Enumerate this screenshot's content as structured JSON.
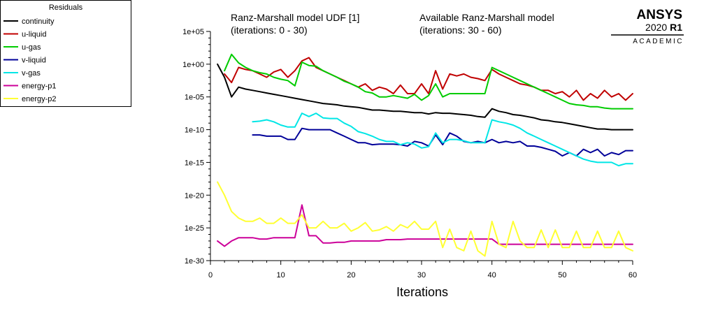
{
  "chart_data": {
    "type": "line",
    "title": "",
    "xlabel": "Iterations",
    "ylabel": "",
    "xlim": [
      0,
      60
    ],
    "ylim_exp": [
      -30,
      5
    ],
    "y_scale": "log",
    "x_ticks": [
      "0",
      "10",
      "20",
      "30",
      "40",
      "50",
      "60"
    ],
    "y_ticks": [
      "1e+05",
      "1e+00",
      "1e-05",
      "1e-10",
      "1e-15",
      "1e-20",
      "1e-25",
      "1e-30"
    ],
    "grid": false,
    "legend": {
      "title": "Residuals",
      "placement": "top-left"
    },
    "annotations": [
      {
        "line1": "Ranz-Marshall model UDF [1]",
        "line2": "(iterations: 0 - 30)"
      },
      {
        "line1": "Available Ranz-Marshall model",
        "line2": "(iterations: 30 - 60)"
      }
    ],
    "series": [
      {
        "name": "continuity",
        "color": "#000000",
        "x": [
          1,
          2,
          3,
          4,
          5,
          6,
          7,
          8,
          9,
          10,
          11,
          12,
          13,
          14,
          15,
          16,
          17,
          18,
          19,
          20,
          21,
          22,
          23,
          24,
          25,
          26,
          27,
          28,
          29,
          30,
          31,
          32,
          33,
          34,
          35,
          36,
          37,
          38,
          39,
          40,
          41,
          42,
          43,
          44,
          45,
          46,
          47,
          48,
          49,
          50,
          51,
          52,
          53,
          54,
          55,
          56,
          57,
          58,
          59,
          60
        ],
        "y_exp": [
          0,
          -2,
          -5,
          -3.5,
          -3.8,
          -4,
          -4.2,
          -4.4,
          -4.6,
          -4.8,
          -5,
          -5.2,
          -5.4,
          -5.6,
          -5.8,
          -6,
          -6.1,
          -6.2,
          -6.4,
          -6.5,
          -6.6,
          -6.8,
          -7,
          -7,
          -7.1,
          -7.2,
          -7.2,
          -7.3,
          -7.4,
          -7.4,
          -7.6,
          -7.4,
          -7.5,
          -7.5,
          -7.6,
          -7.7,
          -7.8,
          -8,
          -8.1,
          -6.8,
          -7.2,
          -7.4,
          -7.7,
          -7.8,
          -8,
          -8.2,
          -8.5,
          -8.6,
          -8.8,
          -8.9,
          -9.1,
          -9.3,
          -9.5,
          -9.7,
          -9.9,
          -9.9,
          -10,
          -10,
          -10,
          -10
        ]
      },
      {
        "name": "u-liquid",
        "color": "#c00000",
        "x": [
          1,
          2,
          3,
          4,
          5,
          6,
          7,
          8,
          9,
          10,
          11,
          12,
          13,
          14,
          15,
          16,
          17,
          18,
          19,
          20,
          21,
          22,
          23,
          24,
          25,
          26,
          27,
          28,
          29,
          30,
          31,
          32,
          33,
          34,
          35,
          36,
          37,
          38,
          39,
          40,
          41,
          42,
          43,
          44,
          45,
          46,
          47,
          48,
          49,
          50,
          51,
          52,
          53,
          54,
          55,
          56,
          57,
          58,
          59,
          60
        ],
        "y_exp": [
          null,
          -1.5,
          -2.8,
          -0.5,
          -0.8,
          -1,
          -1.5,
          -2,
          -1.2,
          -0.8,
          -2,
          -1,
          0.5,
          1,
          -0.5,
          -1,
          -1.5,
          -2,
          -2.5,
          -3,
          -3.5,
          -3,
          -4,
          -3.5,
          -3.8,
          -4.5,
          -3.2,
          -4.5,
          -4.5,
          -3,
          -4.5,
          -1,
          -3.8,
          -1.5,
          -1.8,
          -1.5,
          -2,
          -2.2,
          -2.5,
          -0.8,
          -1.5,
          -2,
          -2.5,
          -3,
          -3.2,
          -3.5,
          -4,
          -4,
          -4.5,
          -4.2,
          -5,
          -4,
          -5.5,
          -4.5,
          -5.2,
          -4,
          -5,
          -4.5,
          -5.5,
          -4.5
        ]
      },
      {
        "name": "u-gas",
        "color": "#00cc00",
        "x": [
          2,
          3,
          4,
          5,
          6,
          7,
          8,
          9,
          10,
          11,
          12,
          13,
          14,
          15,
          16,
          17,
          18,
          19,
          20,
          21,
          22,
          23,
          24,
          25,
          26,
          27,
          28,
          29,
          30,
          31,
          32,
          33,
          34,
          35,
          36,
          37,
          38,
          39,
          40,
          41,
          42,
          43,
          44,
          45,
          46,
          47,
          48,
          49,
          50,
          51,
          52,
          53,
          54,
          55,
          56,
          57,
          58,
          59,
          60
        ],
        "y_exp": [
          -1,
          1.5,
          0.2,
          -0.5,
          -1,
          -1.3,
          -1.5,
          -2,
          -2.3,
          -2.5,
          -3.3,
          0.3,
          -0.2,
          -0.3,
          -1,
          -1.5,
          -2,
          -2.6,
          -3,
          -3.5,
          -4.2,
          -4.4,
          -5,
          -5,
          -4.8,
          -5,
          -5.2,
          -4.6,
          -5.5,
          -4.8,
          -3,
          -5,
          -4.5,
          -4.5,
          -4.5,
          -4.5,
          -4.5,
          -4.5,
          -0.5,
          -1,
          -1.5,
          -2,
          -2.5,
          -3,
          -3.5,
          -4,
          -4.5,
          -5,
          -5.5,
          -6,
          -6.2,
          -6.3,
          -6.5,
          -6.5,
          -6.7,
          -6.8,
          -6.8,
          -6.8,
          -6.8
        ]
      },
      {
        "name": "v-liquid",
        "color": "#000099",
        "x": [
          6,
          7,
          8,
          9,
          10,
          11,
          12,
          13,
          14,
          15,
          16,
          17,
          18,
          19,
          20,
          21,
          22,
          23,
          24,
          25,
          26,
          27,
          28,
          29,
          30,
          31,
          32,
          33,
          34,
          35,
          36,
          37,
          38,
          39,
          40,
          41,
          42,
          43,
          44,
          45,
          46,
          47,
          48,
          49,
          50,
          51,
          52,
          53,
          54,
          55,
          56,
          57,
          58,
          59,
          60
        ],
        "y_exp": [
          -10.8,
          -10.8,
          -11,
          -11,
          -11,
          -11.5,
          -11.5,
          -9.8,
          -10,
          -10,
          -10,
          -10,
          -10.5,
          -11,
          -11.5,
          -12,
          -12,
          -12.3,
          -12.2,
          -12.2,
          -12.2,
          -12.3,
          -12.5,
          -11.8,
          -12,
          -12.5,
          -10.8,
          -12.3,
          -10.5,
          -11,
          -11.8,
          -12,
          -11.8,
          -12,
          -11.5,
          -12,
          -11.8,
          -12,
          -11.8,
          -12.5,
          -12.5,
          -12.7,
          -13,
          -13.3,
          -14,
          -13.5,
          -14,
          -13,
          -13.5,
          -13,
          -14,
          -13.5,
          -13.8,
          -13.2,
          -13.2
        ]
      },
      {
        "name": "v-gas",
        "color": "#00e6e6",
        "x": [
          6,
          7,
          8,
          9,
          10,
          11,
          12,
          13,
          14,
          15,
          16,
          17,
          18,
          19,
          20,
          21,
          22,
          23,
          24,
          25,
          26,
          27,
          28,
          29,
          30,
          31,
          32,
          33,
          34,
          35,
          36,
          37,
          38,
          39,
          40,
          41,
          42,
          43,
          44,
          45,
          46,
          47,
          48,
          49,
          50,
          51,
          52,
          53,
          54,
          55,
          56,
          57,
          58,
          59,
          60
        ],
        "y_exp": [
          -8.8,
          -8.7,
          -8.5,
          -8.8,
          -9.3,
          -9.6,
          -9.6,
          -7.5,
          -8,
          -7.5,
          -8.2,
          -8.3,
          -8.3,
          -9,
          -9.5,
          -10.3,
          -10.6,
          -11,
          -11.5,
          -11.8,
          -11.8,
          -12.3,
          -12,
          -12.2,
          -12.8,
          -12.6,
          -10.5,
          -12,
          -11.5,
          -11.5,
          -11.7,
          -12,
          -12,
          -12,
          -8.5,
          -8.8,
          -9,
          -9.3,
          -9.8,
          -10.5,
          -11,
          -11.5,
          -12,
          -12.5,
          -13,
          -13.5,
          -14,
          -14.5,
          -14.8,
          -15,
          -15,
          -15,
          -15.5,
          -15.2,
          -15.2
        ]
      },
      {
        "name": "energy-p1",
        "color": "#cc0099",
        "x": [
          1,
          2,
          3,
          4,
          5,
          6,
          7,
          8,
          9,
          10,
          11,
          12,
          13,
          14,
          15,
          16,
          17,
          18,
          19,
          20,
          21,
          22,
          23,
          24,
          25,
          26,
          27,
          28,
          29,
          30,
          31,
          32,
          33,
          34,
          35,
          36,
          37,
          38,
          39,
          40,
          41,
          42,
          43,
          44,
          45,
          46,
          47,
          48,
          49,
          50,
          51,
          52,
          53,
          54,
          55,
          56,
          57,
          58,
          59,
          60
        ],
        "y_exp": [
          -27,
          -27.8,
          -27,
          -26.5,
          -26.5,
          -26.5,
          -26.7,
          -26.7,
          -26.5,
          -26.5,
          -26.5,
          -26.5,
          -21.5,
          -26.2,
          -26.2,
          -27.3,
          -27.3,
          -27.2,
          -27.2,
          -27,
          -27,
          -27,
          -27,
          -27,
          -26.8,
          -26.8,
          -26.8,
          -26.7,
          -26.7,
          -26.7,
          -26.7,
          -26.7,
          -26.7,
          -26.7,
          -26.7,
          -26.7,
          -26.7,
          -26.7,
          -26.7,
          -26.7,
          -27.5,
          -27.5,
          -27.5,
          -27.5,
          -27.5,
          -27.5,
          -27.5,
          -27.5,
          -27.5,
          -27.5,
          -27.5,
          -27.5,
          -27.5,
          -27.5,
          -27.5,
          -27.5,
          -27.5,
          -27.5,
          -27.5,
          -27.5
        ]
      },
      {
        "name": "energy-p2",
        "color": "#ffff33",
        "x": [
          1,
          2,
          3,
          4,
          5,
          6,
          7,
          8,
          9,
          10,
          11,
          12,
          13,
          14,
          15,
          16,
          17,
          18,
          19,
          20,
          21,
          22,
          23,
          24,
          25,
          26,
          27,
          28,
          29,
          30,
          31,
          32,
          33,
          34,
          35,
          36,
          37,
          38,
          39,
          40,
          41,
          42,
          43,
          44,
          45,
          46,
          47,
          48,
          49,
          50,
          51,
          52,
          53,
          54,
          55,
          56,
          57,
          58,
          59,
          60
        ],
        "y_exp": [
          -18,
          -20,
          -22.5,
          -23.5,
          -24,
          -24,
          -23.5,
          -24.3,
          -24.3,
          -23.5,
          -24.3,
          -24.3,
          -23,
          -25,
          -25,
          -24,
          -25,
          -25,
          -24.3,
          -25.5,
          -25,
          -24.2,
          -25.5,
          -25.3,
          -24.8,
          -25.5,
          -24.5,
          -25,
          -24,
          -25.2,
          -25.2,
          -24,
          -28,
          -25.2,
          -28,
          -28.5,
          -25.5,
          -28.5,
          -29.3,
          -24,
          -27.5,
          -28,
          -24,
          -27,
          -28,
          -28,
          -25.3,
          -28,
          -25.3,
          -28,
          -28,
          -25.5,
          -28,
          -28,
          -25.5,
          -28,
          -28,
          -25.5,
          -28,
          -28.5
        ]
      }
    ]
  },
  "logo": {
    "name": "ANSYS",
    "version_year": "2020",
    "version_release": "R1",
    "edition": "ACADEMIC"
  }
}
